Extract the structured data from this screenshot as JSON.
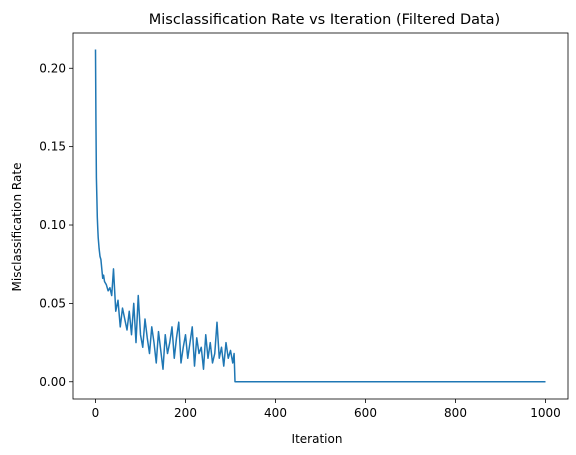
{
  "chart_data": {
    "type": "line",
    "title": "Misclassification Rate vs Iteration (Filtered Data)",
    "xlabel": "Iteration",
    "ylabel": "Misclassification Rate",
    "xlim": [
      -50,
      1050
    ],
    "ylim": [
      -0.011,
      0.2225
    ],
    "xticks": [
      0,
      200,
      400,
      600,
      800,
      1000
    ],
    "xtick_labels": [
      "0",
      "200",
      "400",
      "600",
      "800",
      "1000"
    ],
    "yticks": [
      0.0,
      0.05,
      0.1,
      0.15,
      0.2
    ],
    "ytick_labels": [
      "0.00",
      "0.05",
      "0.10",
      "0.15",
      "0.20"
    ],
    "grid": false,
    "legend": "none",
    "line_color": "#1f77b4",
    "series": [
      {
        "x": [
          0,
          1,
          2,
          3,
          4,
          5,
          6,
          8,
          10,
          12,
          14,
          16,
          18,
          20,
          24,
          28,
          32,
          36,
          40,
          45,
          50,
          55,
          60,
          65,
          70,
          75,
          80,
          85,
          90,
          95,
          100,
          105,
          110,
          115,
          120,
          125,
          130,
          135,
          140,
          145,
          150,
          155,
          160,
          165,
          170,
          175,
          180,
          185,
          190,
          195,
          200,
          205,
          210,
          215,
          220,
          225,
          230,
          235,
          240,
          245,
          250,
          255,
          260,
          265,
          270,
          275,
          280,
          285,
          290,
          295,
          300,
          305,
          308,
          310,
          320,
          400,
          500,
          600,
          700,
          800,
          900,
          1000
        ],
        "y": [
          0.212,
          0.165,
          0.13,
          0.118,
          0.105,
          0.098,
          0.092,
          0.085,
          0.08,
          0.078,
          0.072,
          0.066,
          0.068,
          0.064,
          0.062,
          0.058,
          0.06,
          0.055,
          0.072,
          0.045,
          0.052,
          0.035,
          0.047,
          0.04,
          0.033,
          0.045,
          0.03,
          0.05,
          0.025,
          0.055,
          0.03,
          0.022,
          0.04,
          0.028,
          0.018,
          0.035,
          0.025,
          0.012,
          0.032,
          0.02,
          0.008,
          0.03,
          0.018,
          0.025,
          0.035,
          0.015,
          0.028,
          0.038,
          0.012,
          0.022,
          0.03,
          0.015,
          0.025,
          0.035,
          0.01,
          0.028,
          0.018,
          0.022,
          0.008,
          0.03,
          0.015,
          0.025,
          0.012,
          0.018,
          0.038,
          0.015,
          0.022,
          0.01,
          0.025,
          0.015,
          0.02,
          0.012,
          0.018,
          0.0,
          0.0,
          0.0,
          0.0,
          0.0,
          0.0,
          0.0,
          0.0,
          0.0
        ]
      }
    ]
  }
}
